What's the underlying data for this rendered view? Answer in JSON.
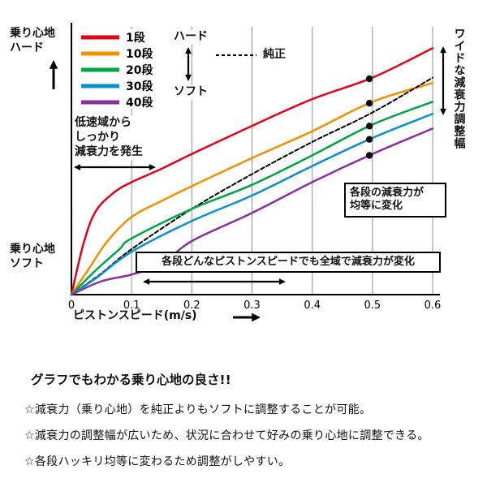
{
  "chart_data": {
    "type": "line",
    "title": "",
    "xlabel": "ピストンスピード(m/s)",
    "x_tick_labels": [
      "0",
      "0.1",
      "0.2",
      "0.3",
      "0.4",
      "0.5",
      "0.6"
    ],
    "xlim": [
      0,
      0.6
    ],
    "ylim": [
      0,
      100
    ],
    "grid": "vertical",
    "legend_position": "top-left-inside",
    "y_axis_top_label": "乗り心地\nハード",
    "y_axis_bottom_label": "乗り心地\nソフト",
    "legend_hard": "ハード",
    "legend_soft": "ソフト",
    "marker_x": 0.495,
    "marker_series": [
      "1段",
      "10段",
      "20段",
      "30段",
      "40段"
    ],
    "series": [
      {
        "name": "1段",
        "color": "#e50019",
        "style": "solid",
        "points": [
          [
            0,
            0
          ],
          [
            0.02,
            19
          ],
          [
            0.04,
            31
          ],
          [
            0.07,
            38
          ],
          [
            0.1,
            42
          ],
          [
            0.15,
            47
          ],
          [
            0.2,
            52.5
          ],
          [
            0.3,
            63
          ],
          [
            0.4,
            73
          ],
          [
            0.5,
            81
          ],
          [
            0.6,
            92
          ]
        ]
      },
      {
        "name": "10段",
        "color": "#f29000",
        "style": "solid",
        "points": [
          [
            0,
            0
          ],
          [
            0.03,
            10
          ],
          [
            0.06,
            20
          ],
          [
            0.1,
            29
          ],
          [
            0.15,
            35
          ],
          [
            0.2,
            40.5
          ],
          [
            0.3,
            51
          ],
          [
            0.4,
            61
          ],
          [
            0.5,
            72
          ],
          [
            0.6,
            79
          ]
        ]
      },
      {
        "name": "純正",
        "color": "#000000",
        "style": "dashed",
        "points": [
          [
            0,
            0
          ],
          [
            0.05,
            8
          ],
          [
            0.1,
            17
          ],
          [
            0.2,
            32
          ],
          [
            0.3,
            45
          ],
          [
            0.4,
            57
          ],
          [
            0.5,
            68
          ],
          [
            0.6,
            81
          ]
        ]
      },
      {
        "name": "20段",
        "color": "#00a544",
        "style": "solid",
        "points": [
          [
            0,
            0
          ],
          [
            0.04,
            9
          ],
          [
            0.08,
            17
          ],
          [
            0.1,
            21
          ],
          [
            0.2,
            32
          ],
          [
            0.3,
            41
          ],
          [
            0.4,
            52
          ],
          [
            0.5,
            63.5
          ],
          [
            0.6,
            72
          ]
        ]
      },
      {
        "name": "30段",
        "color": "#0a8fd0",
        "style": "solid",
        "points": [
          [
            0,
            0
          ],
          [
            0.04,
            6
          ],
          [
            0.1,
            16
          ],
          [
            0.2,
            27.5
          ],
          [
            0.3,
            37
          ],
          [
            0.4,
            48
          ],
          [
            0.5,
            58.5
          ],
          [
            0.6,
            67.5
          ]
        ]
      },
      {
        "name": "40段",
        "color": "#8b2f9e",
        "style": "solid",
        "points": [
          [
            0,
            0
          ],
          [
            0.05,
            5
          ],
          [
            0.1,
            7.5
          ],
          [
            0.15,
            11.5
          ],
          [
            0.2,
            20
          ],
          [
            0.3,
            30.5
          ],
          [
            0.4,
            42
          ],
          [
            0.5,
            52.5
          ],
          [
            0.6,
            62
          ]
        ]
      }
    ],
    "annotations": {
      "low_speed": "低速域から\nしっかり\n減衰力を発生",
      "wide_range": "ワイドな減衰力調整幅",
      "equal_steps": "各段の減衰力が\n均等に変化",
      "full_range": "各段どんなピストンスピードでも全域で減衰力が変化"
    }
  },
  "footer": {
    "heading": "グラフでもわかる乗り心地の良さ!!",
    "bullets": [
      "☆減衰力（乗り心地）を純正よりもソフトに調整することが可能。",
      "☆減衰力の調整幅が広いため、状況に合わせて好みの乗り心地に調整できる。",
      "☆各段ハッキリ均等に変わるため調整がしやすい。"
    ]
  }
}
